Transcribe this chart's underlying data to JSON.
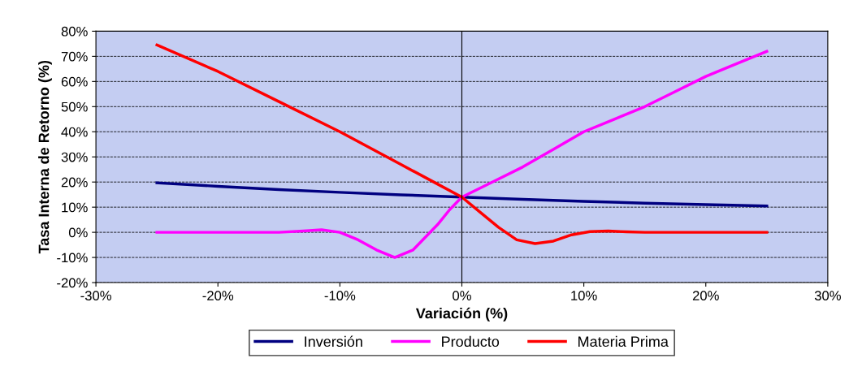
{
  "chart_data": {
    "type": "line",
    "xlabel": "Variación (%)",
    "ylabel": "Tasa Interna de Retorno (%)",
    "xlim": [
      -30,
      30
    ],
    "xticks": [
      {
        "value": -30,
        "label": "-30%"
      },
      {
        "value": -20,
        "label": "-20%"
      },
      {
        "value": -10,
        "label": "-10%"
      },
      {
        "value": 0,
        "label": "0%"
      },
      {
        "value": 10,
        "label": "10%"
      },
      {
        "value": 20,
        "label": "20%"
      },
      {
        "value": 30,
        "label": "30%"
      }
    ],
    "ylim": [
      -20,
      80
    ],
    "yticks": [
      {
        "value": -20,
        "label": "-20%"
      },
      {
        "value": -10,
        "label": "-10%"
      },
      {
        "value": 0,
        "label": "0%"
      },
      {
        "value": 10,
        "label": "10%"
      },
      {
        "value": 20,
        "label": "20%"
      },
      {
        "value": 30,
        "label": "30%"
      },
      {
        "value": 40,
        "label": "40%"
      },
      {
        "value": 50,
        "label": "50%"
      },
      {
        "value": 60,
        "label": "60%"
      },
      {
        "value": 70,
        "label": "70%"
      },
      {
        "value": 80,
        "label": "80%"
      }
    ],
    "grid": "y",
    "legend": "bottom",
    "marker": "none",
    "line_style": "solid",
    "ref_lines": [
      {
        "axis": "x",
        "value": 0,
        "color": "#000000"
      }
    ],
    "series": [
      {
        "name": "Inversión",
        "color": "#000080",
        "x": [
          -25,
          -20,
          -15,
          -10,
          -5,
          0,
          5,
          10,
          15,
          20,
          25
        ],
        "values": [
          19.7,
          18.3,
          17,
          15.9,
          14.9,
          14,
          13.1,
          12.3,
          11.6,
          11,
          10.5
        ]
      },
      {
        "name": "Producto",
        "color": "#ff00ff",
        "x": [
          -25,
          -20,
          -15,
          -13,
          -11.5,
          -10,
          -8.5,
          -7,
          -5.5,
          -4,
          -3,
          -2,
          -1,
          0,
          2.5,
          5,
          7.5,
          10,
          12.5,
          15,
          17.5,
          20,
          22.5,
          25
        ],
        "values": [
          0,
          0,
          0,
          0.5,
          1,
          0,
          -3,
          -7,
          -10,
          -7,
          -2,
          3,
          9,
          14,
          20,
          26,
          33,
          40,
          45,
          50,
          56,
          62,
          67,
          72
        ]
      },
      {
        "name": "Materia Prima",
        "color": "#ff0000",
        "x": [
          -25,
          -20,
          -15,
          -10,
          -5,
          -2.5,
          0,
          1.5,
          3,
          4.5,
          6,
          7.5,
          9,
          10.5,
          12,
          13.5,
          15,
          20,
          25
        ],
        "values": [
          74.5,
          64,
          52,
          40,
          27,
          20.5,
          14,
          8,
          2,
          -3,
          -4.5,
          -3.5,
          -1,
          0.3,
          0.5,
          0.2,
          0,
          0,
          0
        ]
      }
    ]
  }
}
